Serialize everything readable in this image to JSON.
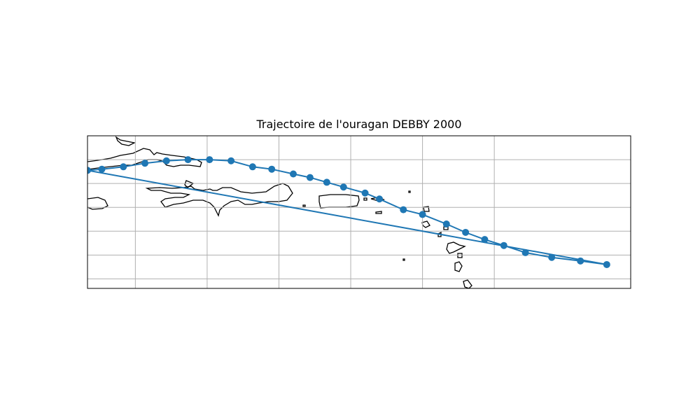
{
  "title": "Trajectoire de l'ouragan DEBBY 2000",
  "colors": {
    "track": "#1f77b4",
    "coast": "#000000",
    "grid": "#b0b0b0",
    "frame": "#000000"
  },
  "map": {
    "extent": {
      "lon_min": -76.5,
      "lon_max": -53.8,
      "lat_min": 16.6,
      "lat_max": 23.0
    },
    "gridlines": {
      "lons": [
        -74.5,
        -71.5,
        -68.5,
        -65.5,
        -62.5,
        -59.5
      ],
      "lats": [
        17.0,
        18.0,
        19.0,
        20.0,
        21.0,
        22.0
      ]
    }
  },
  "track": {
    "name": "DEBBY 2000",
    "points": [
      {
        "lon": -54.8,
        "lat": 17.6
      },
      {
        "lon": -55.9,
        "lat": 17.75
      },
      {
        "lon": -57.1,
        "lat": 17.9
      },
      {
        "lon": -58.2,
        "lat": 18.1
      },
      {
        "lon": -59.1,
        "lat": 18.4
      },
      {
        "lon": -59.9,
        "lat": 18.65
      },
      {
        "lon": -60.7,
        "lat": 18.95
      },
      {
        "lon": -61.5,
        "lat": 19.3
      },
      {
        "lon": -62.5,
        "lat": 19.7
      },
      {
        "lon": -63.3,
        "lat": 19.9
      },
      {
        "lon": -64.3,
        "lat": 20.35
      },
      {
        "lon": -64.9,
        "lat": 20.6
      },
      {
        "lon": -65.8,
        "lat": 20.85
      },
      {
        "lon": -66.5,
        "lat": 21.05
      },
      {
        "lon": -67.2,
        "lat": 21.25
      },
      {
        "lon": -67.9,
        "lat": 21.4
      },
      {
        "lon": -68.8,
        "lat": 21.6
      },
      {
        "lon": -69.6,
        "lat": 21.7
      },
      {
        "lon": -70.5,
        "lat": 21.95
      },
      {
        "lon": -71.4,
        "lat": 22.0
      },
      {
        "lon": -72.3,
        "lat": 22.0
      },
      {
        "lon": -73.2,
        "lat": 21.95
      },
      {
        "lon": -74.1,
        "lat": 21.85
      },
      {
        "lon": -75.0,
        "lat": 21.7
      },
      {
        "lon": -75.9,
        "lat": 21.6
      },
      {
        "lon": -76.5,
        "lat": 21.55
      }
    ]
  }
}
